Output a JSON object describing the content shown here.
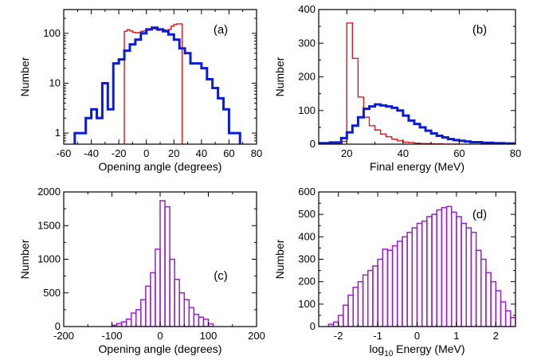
{
  "colors": {
    "red": "#e8141a",
    "blue": "#0b1cd6",
    "purple": "#9b1ecc"
  },
  "chart_data": [
    {
      "panel": "(a)",
      "type": "histogram-step",
      "xlabel": "Opening angle (degrees)",
      "ylabel": "Number",
      "xlim": [
        -60,
        80
      ],
      "ylim": [
        0.6,
        300
      ],
      "yscale": "log",
      "xticks": [
        -60,
        -40,
        -20,
        0,
        20,
        40,
        60,
        80
      ],
      "yticks": [
        1,
        10,
        100
      ],
      "series": [
        {
          "color": "red",
          "edges": [
            -16,
            -14,
            -12,
            -10,
            -8,
            -6,
            -4,
            -2,
            0,
            2,
            4,
            6,
            8,
            10,
            12,
            14,
            16,
            18,
            20,
            22,
            24,
            26
          ],
          "values": [
            110,
            118,
            112,
            105,
            102,
            105,
            110,
            112,
            115,
            118,
            125,
            122,
            115,
            120,
            118,
            115,
            120,
            140,
            150,
            155,
            155
          ]
        },
        {
          "color": "blue",
          "edges": [
            -52,
            -48,
            -44,
            -40,
            -36,
            -32,
            -28,
            -24,
            -20,
            -16,
            -12,
            -8,
            -4,
            0,
            4,
            8,
            12,
            16,
            20,
            24,
            28,
            32,
            36,
            40,
            44,
            48,
            52,
            56,
            60,
            64,
            68
          ],
          "values": [
            1,
            1,
            2,
            3,
            2,
            10,
            3,
            25,
            30,
            45,
            60,
            75,
            100,
            120,
            130,
            120,
            110,
            95,
            75,
            50,
            40,
            25,
            25,
            20,
            12,
            8,
            5,
            3,
            1,
            1
          ]
        }
      ]
    },
    {
      "panel": "(b)",
      "type": "histogram-step",
      "xlabel": "Final energy (MeV)",
      "ylabel": "Number",
      "xlim": [
        10,
        80
      ],
      "ylim": [
        0,
        400
      ],
      "xticks": [
        20,
        40,
        60,
        80
      ],
      "yticks": [
        0,
        100,
        200,
        300,
        400
      ],
      "series": [
        {
          "color": "red",
          "edges": [
            10,
            12,
            14,
            16,
            18,
            20,
            22,
            24,
            26,
            28,
            30,
            32,
            34,
            36,
            38,
            40,
            42,
            44,
            46,
            48,
            50,
            52,
            54,
            56,
            58,
            60
          ],
          "values": [
            0,
            0,
            0,
            0,
            8,
            360,
            255,
            140,
            80,
            55,
            42,
            30,
            22,
            15,
            10,
            6,
            5,
            3,
            2,
            2,
            1,
            1,
            0,
            0,
            0
          ]
        },
        {
          "color": "blue",
          "edges": [
            10,
            14,
            18,
            20,
            22,
            24,
            26,
            28,
            30,
            32,
            34,
            36,
            38,
            40,
            42,
            44,
            46,
            48,
            50,
            52,
            54,
            56,
            58,
            60,
            62,
            64,
            68,
            72,
            76,
            80
          ],
          "values": [
            3,
            5,
            18,
            35,
            55,
            80,
            105,
            112,
            118,
            115,
            112,
            108,
            100,
            85,
            70,
            60,
            50,
            40,
            32,
            25,
            20,
            15,
            12,
            10,
            8,
            6,
            4,
            3,
            2
          ]
        }
      ]
    },
    {
      "panel": "(c)",
      "type": "histogram-bars",
      "xlabel": "Opening angle (degrees)",
      "ylabel": "Number",
      "xlim": [
        -200,
        200
      ],
      "ylim": [
        0,
        2000
      ],
      "xticks": [
        -200,
        -100,
        0,
        100,
        200
      ],
      "yticks": [
        0,
        500,
        1000,
        1500,
        2000
      ],
      "color": "purple",
      "bin_start": -100,
      "bin_width": 10,
      "values": [
        20,
        45,
        70,
        110,
        200,
        250,
        400,
        600,
        800,
        1150,
        1870,
        1780,
        1000,
        700,
        500,
        400,
        280,
        180,
        140,
        110,
        40
      ]
    },
    {
      "panel": "(d)",
      "type": "histogram-bars",
      "xlabel": "log₁₀ Energy (MeV)",
      "ylabel": "Number",
      "xlim": [
        -2.5,
        2.5
      ],
      "ylim": [
        0,
        600
      ],
      "xticks": [
        -2,
        -1,
        0,
        1,
        2
      ],
      "yticks": [
        0,
        100,
        200,
        300,
        400,
        500,
        600
      ],
      "color": "purple",
      "bin_start": -2.25,
      "bin_width": 0.125,
      "values": [
        10,
        20,
        50,
        95,
        140,
        175,
        200,
        230,
        250,
        270,
        300,
        345,
        340,
        360,
        380,
        400,
        420,
        440,
        460,
        470,
        490,
        500,
        520,
        530,
        535,
        510,
        490,
        460,
        440,
        420,
        340,
        300,
        240,
        200,
        160,
        110,
        70,
        40
      ]
    }
  ]
}
